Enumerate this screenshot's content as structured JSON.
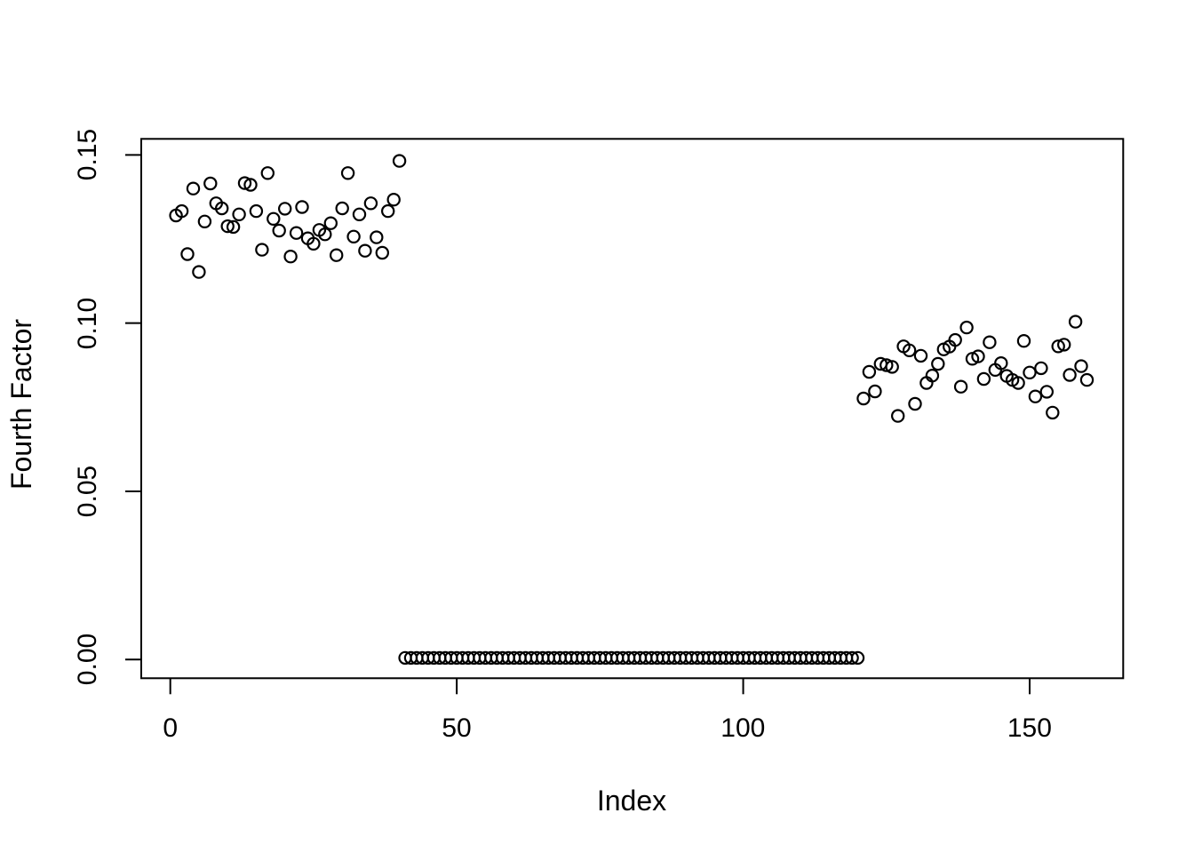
{
  "figure": {
    "background_color": "#ffffff",
    "foreground_color": "#000000"
  },
  "chart_data": {
    "type": "scatter",
    "title": "",
    "xlabel": "Index",
    "ylabel": "Fourth Factor",
    "marker": "open-circle",
    "grid": false,
    "legend_position": "none",
    "x_ticks": [
      0,
      50,
      100,
      150
    ],
    "x_tick_labels": [
      "0",
      "50",
      "100",
      "150"
    ],
    "y_ticks": [
      0.0,
      0.05,
      0.1,
      0.15
    ],
    "y_tick_labels": [
      "0.00",
      "0.05",
      "0.10",
      "0.15"
    ],
    "xlim": [
      -5.07,
      166.33
    ],
    "ylim": [
      -0.00555,
      0.15476
    ],
    "x": [
      1,
      2,
      3,
      4,
      5,
      6,
      7,
      8,
      9,
      10,
      11,
      12,
      13,
      14,
      15,
      16,
      17,
      18,
      19,
      20,
      21,
      22,
      23,
      24,
      25,
      26,
      27,
      28,
      29,
      30,
      31,
      32,
      33,
      34,
      35,
      36,
      37,
      38,
      39,
      40,
      41,
      42,
      43,
      44,
      45,
      46,
      47,
      48,
      49,
      50,
      51,
      52,
      53,
      54,
      55,
      56,
      57,
      58,
      59,
      60,
      61,
      62,
      63,
      64,
      65,
      66,
      67,
      68,
      69,
      70,
      71,
      72,
      73,
      74,
      75,
      76,
      77,
      78,
      79,
      80,
      81,
      82,
      83,
      84,
      85,
      86,
      87,
      88,
      89,
      90,
      91,
      92,
      93,
      94,
      95,
      96,
      97,
      98,
      99,
      100,
      101,
      102,
      103,
      104,
      105,
      106,
      107,
      108,
      109,
      110,
      111,
      112,
      113,
      114,
      115,
      116,
      117,
      118,
      119,
      120,
      121,
      122,
      123,
      124,
      125,
      126,
      127,
      128,
      129,
      130,
      131,
      132,
      133,
      134,
      135,
      136,
      137,
      138,
      139,
      140,
      141,
      142,
      143,
      144,
      145,
      146,
      147,
      148,
      149,
      150,
      151,
      152,
      153,
      154,
      155,
      156,
      157,
      158,
      159,
      160
    ],
    "y": [
      0.132,
      0.1333,
      0.1205,
      0.14,
      0.1152,
      0.1302,
      0.1415,
      0.1356,
      0.1341,
      0.1288,
      0.1286,
      0.1323,
      0.1416,
      0.1411,
      0.1333,
      0.1218,
      0.1446,
      0.131,
      0.1275,
      0.134,
      0.1198,
      0.1268,
      0.1345,
      0.1252,
      0.1236,
      0.1277,
      0.1264,
      0.1297,
      0.1202,
      0.1341,
      0.1446,
      0.1257,
      0.1323,
      0.1215,
      0.1356,
      0.1255,
      0.1209,
      0.1333,
      0.1367,
      0.1482,
      0.0005,
      0.0005,
      0.0005,
      0.0005,
      0.0005,
      0.0005,
      0.0005,
      0.0005,
      0.0005,
      0.0005,
      0.0005,
      0.0005,
      0.0005,
      0.0005,
      0.0005,
      0.0005,
      0.0005,
      0.0005,
      0.0005,
      0.0005,
      0.0005,
      0.0005,
      0.0005,
      0.0005,
      0.0005,
      0.0005,
      0.0005,
      0.0005,
      0.0005,
      0.0005,
      0.0005,
      0.0005,
      0.0005,
      0.0005,
      0.0005,
      0.0005,
      0.0005,
      0.0005,
      0.0005,
      0.0005,
      0.0005,
      0.0005,
      0.0005,
      0.0005,
      0.0005,
      0.0005,
      0.0005,
      0.0005,
      0.0005,
      0.0005,
      0.0005,
      0.0005,
      0.0005,
      0.0005,
      0.0005,
      0.0005,
      0.0005,
      0.0005,
      0.0005,
      0.0005,
      0.0005,
      0.0005,
      0.0005,
      0.0005,
      0.0005,
      0.0005,
      0.0005,
      0.0005,
      0.0005,
      0.0005,
      0.0005,
      0.0005,
      0.0005,
      0.0005,
      0.0005,
      0.0005,
      0.0005,
      0.0005,
      0.0005,
      0.0005,
      0.0776,
      0.0855,
      0.0797,
      0.0879,
      0.0875,
      0.087,
      0.0724,
      0.0931,
      0.0919,
      0.076,
      0.0903,
      0.0822,
      0.0844,
      0.0879,
      0.0922,
      0.093,
      0.095,
      0.0811,
      0.0987,
      0.0894,
      0.0901,
      0.0834,
      0.0943,
      0.0861,
      0.0881,
      0.0843,
      0.0831,
      0.0822,
      0.0947,
      0.0853,
      0.0782,
      0.0866,
      0.0796,
      0.0734,
      0.0931,
      0.0936,
      0.0846,
      0.1004,
      0.0872,
      0.0831
    ]
  }
}
